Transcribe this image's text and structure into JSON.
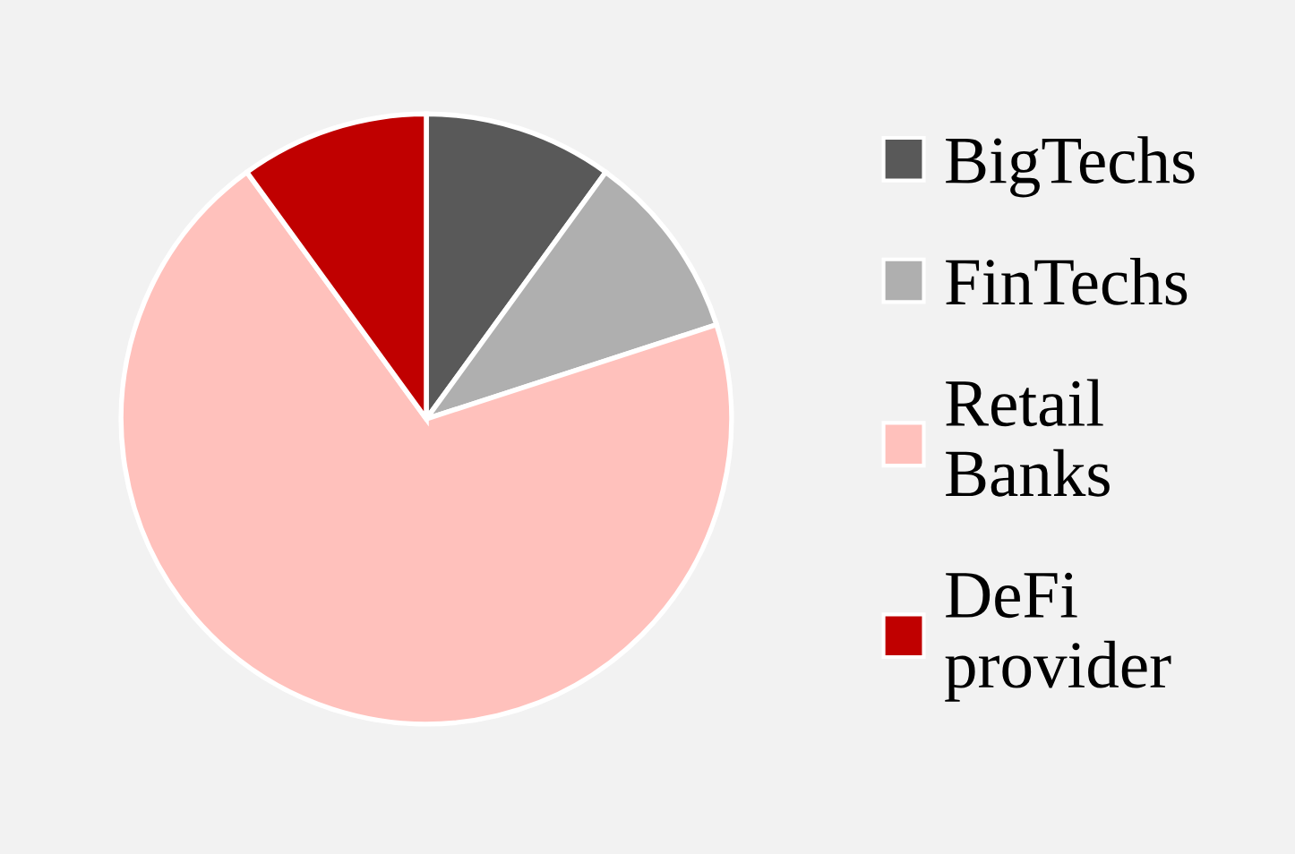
{
  "chart_data": {
    "type": "pie",
    "categories": [
      "BigTechs",
      "FinTechs",
      "Retail Banks",
      "DeFi provider"
    ],
    "values": [
      10,
      10,
      70,
      10
    ],
    "colors": [
      "#595959",
      "#afafaf",
      "#ffc1bc",
      "#c00000"
    ],
    "legend": "right"
  }
}
